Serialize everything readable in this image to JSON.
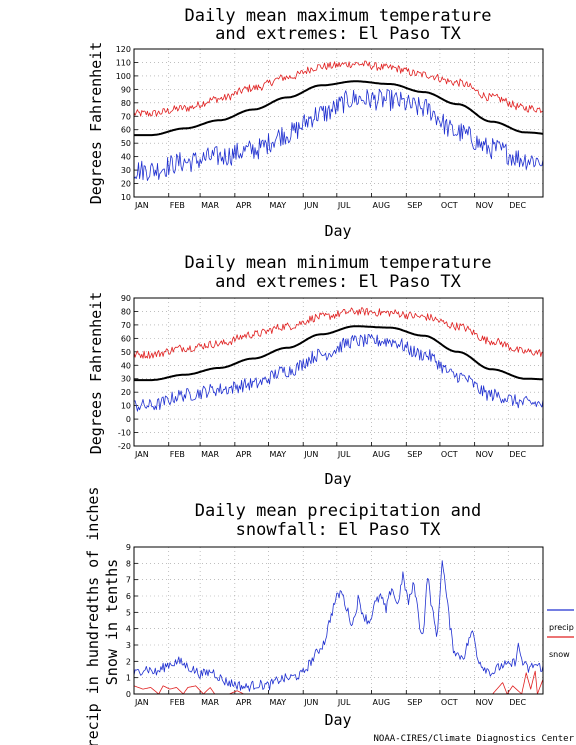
{
  "chart_data": [
    {
      "type": "line",
      "title_lines": [
        "Daily mean maximum temperature",
        "and extremes: El Paso TX"
      ],
      "xlabel": "Day",
      "ylabel": "Degrees Fahrenheit",
      "ylim": [
        10,
        120
      ],
      "yticks": [
        10,
        20,
        30,
        40,
        50,
        60,
        70,
        80,
        90,
        100,
        110,
        120
      ],
      "months": [
        "JAN",
        "FEB",
        "MAR",
        "APR",
        "MAY",
        "JUN",
        "JUL",
        "AUG",
        "SEP",
        "OCT",
        "NOV",
        "DEC"
      ],
      "grid": true,
      "series": [
        {
          "color": "#e02020",
          "kind": "record_high",
          "monthly": [
            72,
            76,
            83,
            91,
            99,
            107,
            109,
            106,
            101,
            95,
            84,
            76,
            74
          ],
          "noise": 3
        },
        {
          "color": "#000000",
          "kind": "mean",
          "smooth": true,
          "monthly": [
            56,
            61,
            67,
            75,
            84,
            93,
            96,
            94,
            88,
            79,
            66,
            58,
            56
          ]
        },
        {
          "color": "#2030d0",
          "kind": "record_low",
          "monthly": [
            30,
            36,
            40,
            45,
            57,
            72,
            83,
            82,
            76,
            58,
            46,
            38,
            35
          ],
          "noise": 8
        }
      ]
    },
    {
      "type": "line",
      "title_lines": [
        "Daily mean minimum temperature",
        "and extremes: El Paso TX"
      ],
      "xlabel": "Day",
      "ylabel": "Degrees Fahrenheit",
      "ylim": [
        -20,
        90
      ],
      "yticks": [
        -20,
        -10,
        0,
        10,
        20,
        30,
        40,
        50,
        60,
        70,
        80,
        90
      ],
      "months": [
        "JAN",
        "FEB",
        "MAR",
        "APR",
        "MAY",
        "JUN",
        "JUL",
        "AUG",
        "SEP",
        "OCT",
        "NOV",
        "DEC"
      ],
      "grid": true,
      "series": [
        {
          "color": "#e02020",
          "kind": "record_high",
          "monthly": [
            48,
            53,
            56,
            63,
            69,
            76,
            80,
            79,
            76,
            69,
            58,
            50,
            48
          ],
          "noise": 3
        },
        {
          "color": "#000000",
          "kind": "mean",
          "smooth": true,
          "monthly": [
            29,
            33,
            38,
            45,
            53,
            63,
            69,
            68,
            62,
            50,
            37,
            30,
            29
          ]
        },
        {
          "color": "#2030d0",
          "kind": "record_low",
          "monthly": [
            10,
            18,
            22,
            26,
            36,
            48,
            58,
            58,
            48,
            32,
            18,
            12,
            10
          ],
          "noise": 5
        }
      ]
    },
    {
      "type": "line",
      "title_lines": [
        "Daily mean precipitation and",
        "snowfall: El Paso TX"
      ],
      "xlabel": "Day",
      "ylabel_lines": [
        "Precip in hundredths of inches",
        "Snow in tenths"
      ],
      "ylim": [
        0,
        9
      ],
      "yticks": [
        0,
        1,
        2,
        3,
        4,
        5,
        6,
        7,
        8,
        9
      ],
      "months": [
        "JAN",
        "FEB",
        "MAR",
        "APR",
        "MAY",
        "JUN",
        "JUL",
        "AUG",
        "SEP",
        "OCT",
        "NOV",
        "DEC"
      ],
      "grid": true,
      "legend": [
        {
          "label": "precip",
          "color": "#2030d0"
        },
        {
          "label": "snow",
          "color": "#e02020"
        }
      ],
      "series": [
        {
          "color": "#2030d0",
          "kind": "precip",
          "points": [
            [
              0,
              1.2
            ],
            [
              10,
              1.6
            ],
            [
              20,
              1.3
            ],
            [
              30,
              1.8
            ],
            [
              40,
              2.0
            ],
            [
              50,
              1.6
            ],
            [
              60,
              1.2
            ],
            [
              70,
              1.4
            ],
            [
              80,
              0.8
            ],
            [
              90,
              0.6
            ],
            [
              100,
              0.4
            ],
            [
              110,
              0.6
            ],
            [
              120,
              0.5
            ],
            [
              130,
              0.9
            ],
            [
              140,
              1.0
            ],
            [
              150,
              1.2
            ],
            [
              160,
              2.2
            ],
            [
              170,
              3.2
            ],
            [
              175,
              4.6
            ],
            [
              180,
              5.8
            ],
            [
              185,
              6.3
            ],
            [
              190,
              5.2
            ],
            [
              195,
              4.2
            ],
            [
              200,
              5.8
            ],
            [
              205,
              4.8
            ],
            [
              210,
              4.4
            ],
            [
              215,
              5.5
            ],
            [
              220,
              6.0
            ],
            [
              225,
              5.1
            ],
            [
              230,
              6.6
            ],
            [
              235,
              5.4
            ],
            [
              240,
              7.2
            ],
            [
              245,
              5.6
            ],
            [
              250,
              6.8
            ],
            [
              255,
              4.2
            ],
            [
              258,
              3.6
            ],
            [
              262,
              7.3
            ],
            [
              266,
              5.2
            ],
            [
              270,
              3.6
            ],
            [
              272,
              4.8
            ],
            [
              275,
              8.4
            ],
            [
              278,
              6.5
            ],
            [
              282,
              4.2
            ],
            [
              285,
              2.8
            ],
            [
              290,
              2.3
            ],
            [
              295,
              2.4
            ],
            [
              300,
              3.6
            ],
            [
              303,
              3.7
            ],
            [
              306,
              2.4
            ],
            [
              310,
              1.8
            ],
            [
              315,
              1.5
            ],
            [
              320,
              1.3
            ],
            [
              325,
              1.6
            ],
            [
              330,
              1.8
            ],
            [
              335,
              1.7
            ],
            [
              340,
              2.0
            ],
            [
              343,
              2.9
            ],
            [
              347,
              1.9
            ],
            [
              352,
              1.5
            ],
            [
              357,
              1.8
            ],
            [
              365,
              1.6
            ]
          ],
          "noise": 0.3
        },
        {
          "color": "#e02020",
          "kind": "snow",
          "points": [
            [
              0,
              0.5
            ],
            [
              8,
              0.3
            ],
            [
              15,
              0.4
            ],
            [
              22,
              0.0
            ],
            [
              26,
              0.5
            ],
            [
              32,
              0.3
            ],
            [
              38,
              0.4
            ],
            [
              44,
              0.0
            ],
            [
              48,
              0.4
            ],
            [
              55,
              0.5
            ],
            [
              62,
              0.0
            ],
            [
              68,
              0.4
            ],
            [
              72,
              0.0
            ],
            [
              85,
              0.0
            ],
            [
              92,
              0.2
            ],
            [
              98,
              0.0
            ],
            [
              110,
              0.0
            ],
            [
              360,
              0.0
            ],
            [
              320,
              0.0
            ],
            [
              329,
              0.7
            ],
            [
              333,
              0.0
            ],
            [
              338,
              0.5
            ],
            [
              346,
              0.0
            ],
            [
              350,
              1.3
            ],
            [
              354,
              0.3
            ],
            [
              358,
              1.4
            ],
            [
              365,
              0.9
            ]
          ]
        }
      ]
    }
  ],
  "credit": "NOAA-CIRES/Climate Diagnostics Center"
}
